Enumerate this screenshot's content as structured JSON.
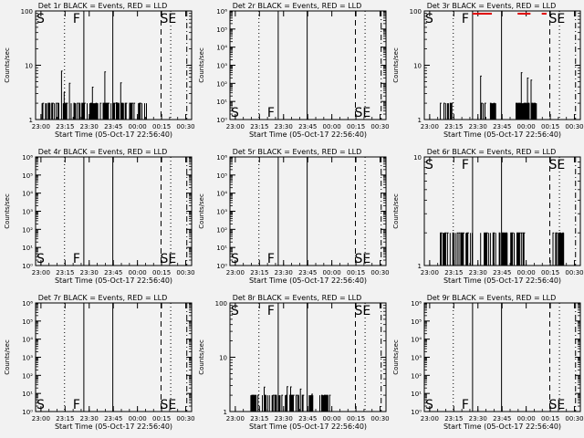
{
  "chart_data": {
    "type": "line",
    "x_ticks": [
      "23:00",
      "23:15",
      "23:30",
      "23:45",
      "00:00",
      "00:15",
      "00:30"
    ],
    "ylabel": "Counts/sec",
    "xlabel": "Start Time (05-Oct-17 22:56:40)",
    "markers": {
      "start": "S",
      "flare": "F",
      "end": "SE"
    },
    "marker_minutes": {
      "start_dashed": 0,
      "s_dotted": 18,
      "f_solid": 30,
      "solid2": 48,
      "se_dashed": 78,
      "se_dotted": 84,
      "dashdot": 94
    },
    "panels": [
      {
        "title": "Det 1r BLACK = Events, RED = LLD",
        "y_scale": "log",
        "y_ticks": [
          "1",
          "10",
          "100"
        ],
        "labels_pos": "top",
        "black_level": 2,
        "black_bursts": [
          [
            4,
            70
          ]
        ],
        "peak": 8,
        "red": false
      },
      {
        "title": "Det 2r BLACK = Events, RED = LLD",
        "y_scale": "log",
        "y_ticks": [
          "10⁰",
          "10¹",
          "10²",
          "10³",
          "10⁴",
          "10⁵",
          "10⁶"
        ],
        "labels_pos": "bottom",
        "black_level": 0,
        "black_bursts": [],
        "peak": 0,
        "red": false
      },
      {
        "title": "Det 3r BLACK = Events, RED = LLD",
        "y_scale": "log",
        "y_ticks": [
          "1",
          "10",
          "100"
        ],
        "labels_pos": "top",
        "black_level": 2,
        "black_bursts": [
          [
            10,
            18
          ],
          [
            35,
            45
          ],
          [
            57,
            70
          ]
        ],
        "peak": 8,
        "red": true
      },
      {
        "title": "Det 4r BLACK = Events, RED = LLD",
        "y_scale": "log",
        "y_ticks": [
          "10⁰",
          "10¹",
          "10²",
          "10³",
          "10⁴",
          "10⁵",
          "10⁶"
        ],
        "labels_pos": "bottom",
        "black_level": 0,
        "black_bursts": [],
        "peak": 0,
        "red": false
      },
      {
        "title": "Det 5r BLACK = Events, RED = LLD",
        "y_scale": "log",
        "y_ticks": [
          "10⁰",
          "10¹",
          "10²",
          "10³",
          "10⁴",
          "10⁵",
          "10⁶"
        ],
        "labels_pos": "bottom",
        "black_level": 0,
        "black_bursts": [],
        "peak": 0,
        "red": false
      },
      {
        "title": "Det 6r BLACK = Events, RED = LLD",
        "y_scale": "log",
        "y_ticks": [
          "1",
          "10"
        ],
        "labels_pos": "top",
        "black_level": 2,
        "black_bursts": [
          [
            10,
            30
          ],
          [
            35,
            62
          ],
          [
            80,
            88
          ]
        ],
        "peak": 2,
        "red": false
      },
      {
        "title": "Det 7r BLACK = Events, RED = LLD",
        "y_scale": "log",
        "y_ticks": [
          "10⁰",
          "10¹",
          "10²",
          "10³",
          "10⁴",
          "10⁵",
          "10⁶"
        ],
        "labels_pos": "bottom",
        "black_level": 0,
        "black_bursts": [],
        "peak": 0,
        "red": false
      },
      {
        "title": "Det 8r BLACK = Events, RED = LLD",
        "y_scale": "log",
        "y_ticks": [
          "1",
          "10",
          "100"
        ],
        "labels_pos": "top",
        "black_level": 2,
        "black_bursts": [
          [
            13,
            62
          ]
        ],
        "peak": 3,
        "red": false
      },
      {
        "title": "Det 9r BLACK = Events, RED = LLD",
        "y_scale": "log",
        "y_ticks": [
          "10⁰",
          "10¹",
          "10²",
          "10³",
          "10⁴",
          "10⁵",
          "10⁶"
        ],
        "labels_pos": "bottom",
        "black_level": 0,
        "black_bursts": [],
        "peak": 0,
        "red": false
      }
    ]
  }
}
